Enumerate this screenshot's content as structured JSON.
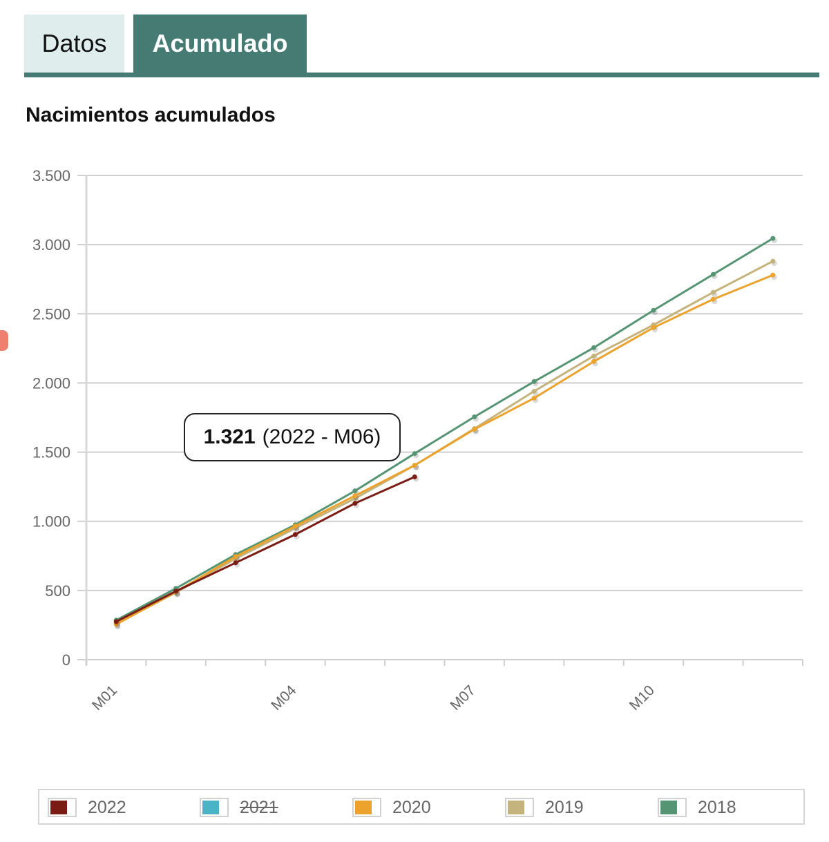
{
  "tabs": [
    {
      "label": "Datos",
      "active": false
    },
    {
      "label": "Acumulado",
      "active": true
    }
  ],
  "colors": {
    "tab_active_bg": "#467b73",
    "tab_inactive_bg": "#dfeeed"
  },
  "tooltip": {
    "value": "1.321",
    "context": "(2022 - M06)"
  },
  "chart_data": {
    "type": "line",
    "title": "Nacimientos acumulados",
    "xlabel": "",
    "ylabel": "",
    "x": [
      "M01",
      "M02",
      "M03",
      "M04",
      "M05",
      "M06",
      "M07",
      "M08",
      "M09",
      "M10",
      "M11",
      "M12"
    ],
    "x_tick_labels": [
      "M01",
      "M04",
      "M07",
      "M10"
    ],
    "y_ticks": [
      0,
      500,
      1000,
      1500,
      2000,
      2500,
      3000,
      3500
    ],
    "y_tick_labels": [
      "0",
      "500",
      "1.000",
      "1.500",
      "2.000",
      "2.500",
      "3.000",
      "3.500"
    ],
    "ylim": [
      0,
      3500
    ],
    "grid": true,
    "legend_position": "bottom",
    "series": [
      {
        "name": "2022",
        "color": "#7a1c14",
        "hidden": false,
        "values": [
          275,
          495,
          700,
          905,
          1130,
          1321
        ]
      },
      {
        "name": "2021",
        "color": "#4ab3c6",
        "hidden": true,
        "values": []
      },
      {
        "name": "2020",
        "color": "#eba32e",
        "hidden": false,
        "values": [
          255,
          490,
          745,
          965,
          1185,
          1405,
          1665,
          1890,
          2155,
          2400,
          2605,
          2780
        ]
      },
      {
        "name": "2019",
        "color": "#c5b37d",
        "hidden": false,
        "values": [
          260,
          485,
          730,
          950,
          1165,
          1405,
          1670,
          1940,
          2195,
          2420,
          2655,
          2880
        ]
      },
      {
        "name": "2018",
        "color": "#569574",
        "hidden": false,
        "values": [
          285,
          515,
          760,
          975,
          1220,
          1490,
          1755,
          2010,
          2255,
          2525,
          2785,
          3045
        ]
      }
    ]
  }
}
